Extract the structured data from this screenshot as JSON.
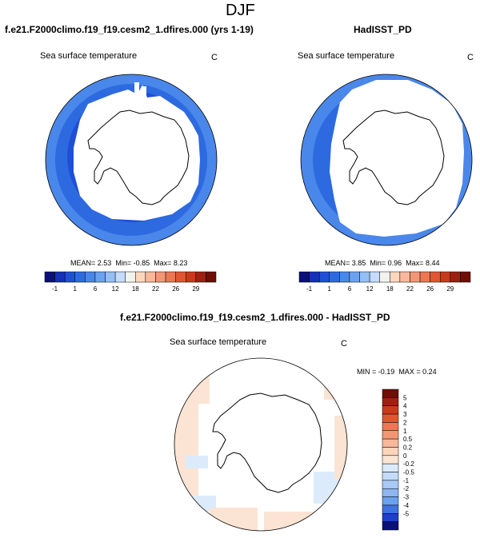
{
  "page_title": "DJF",
  "panels": {
    "left": {
      "title": "f.e21.F2000climo.f19_f19.cesm2_1.dfires.000 (yrs 1-19)",
      "variable": "Sea surface temperature",
      "units": "C",
      "stats": {
        "mean_label": "MEAN=",
        "mean": "2.53",
        "min_label": "Min=",
        "min": "-0.85",
        "max_label": "Max=",
        "max": "8.23"
      }
    },
    "right": {
      "title": "HadISST_PD",
      "variable": "Sea surface temperature",
      "units": "C",
      "stats": {
        "mean_label": "MEAN=",
        "mean": "3.85",
        "min_label": "Min=",
        "min": "0.96",
        "max_label": "Max=",
        "max": "8.44"
      }
    },
    "diff": {
      "title": "f.e21.F2000climo.f19_f19.cesm2_1.dfires.000 - HadISST_PD",
      "variable": "Sea surface temperature",
      "units": "C",
      "stats": {
        "min_label": "MIN =",
        "min": "-0.19",
        "max_label": "MAX =",
        "max": "0.24"
      }
    }
  },
  "colorbar_abs": {
    "colors": [
      "#0a0f7a",
      "#1530b8",
      "#1f4fd6",
      "#2d6ae0",
      "#4a87ea",
      "#6aa2f0",
      "#94bff5",
      "#c4dcfa",
      "#f2f2ee",
      "#fbd6bd",
      "#f8b89a",
      "#f29775",
      "#ec7752",
      "#e15632",
      "#c83a1c",
      "#9e2010",
      "#6e0e05"
    ],
    "labels": [
      "-1",
      "1",
      "6",
      "12",
      "18",
      "22",
      "26",
      "29"
    ]
  },
  "colorbar_diff": {
    "colors": [
      "#6e0e05",
      "#9e2010",
      "#c83a1c",
      "#e15632",
      "#ec7752",
      "#f29775",
      "#f8b89a",
      "#fbd6bd",
      "#fbe4d4",
      "#dcebfb",
      "#c4dcfa",
      "#a9c9f6",
      "#8eb6f1",
      "#6aa2f0",
      "#3f74e0",
      "#1f3fc8",
      "#0a0f7a"
    ],
    "labels": [
      "5",
      "4",
      "3",
      "2",
      "1",
      "0.5",
      "0.2",
      "0",
      "-0.2",
      "-0.5",
      "-1",
      "-2",
      "-3",
      "-4",
      "-5"
    ]
  },
  "map_colors": {
    "ocean_warm": "#4a87ea",
    "ocean_mid": "#2d6ae0",
    "ocean_cold": "#1f4fd6",
    "ocean_edge": "#6aa2f0",
    "ice": "#ffffff",
    "diff_pos": "#fbe4d4",
    "diff_neg": "#dcebfb",
    "coast": "#000000"
  }
}
